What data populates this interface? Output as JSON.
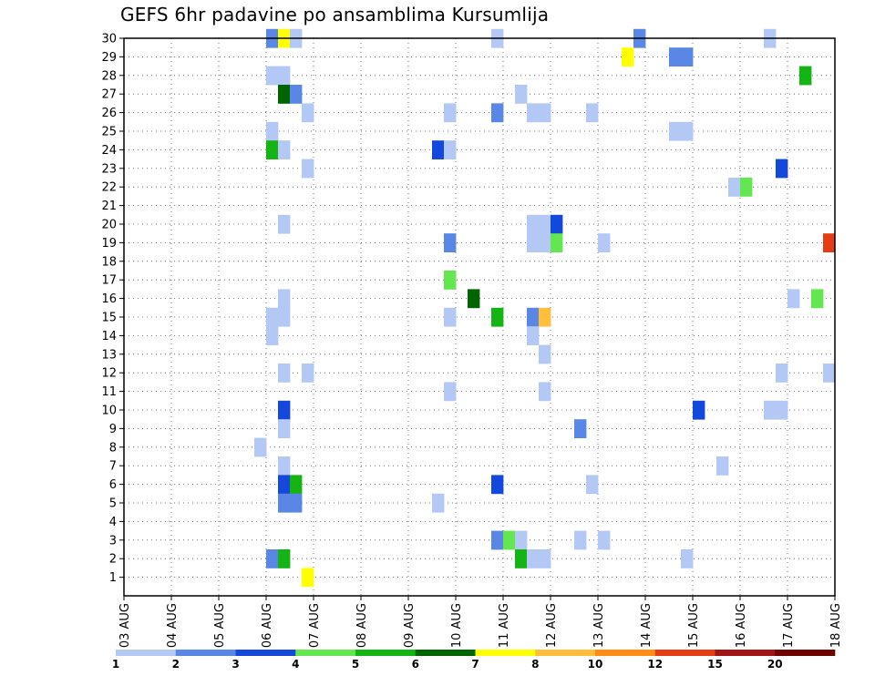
{
  "chart_data": {
    "type": "heatmap",
    "title": "GEFS 6hr padavine po ansamblima Kursumlija",
    "x_tick_labels": [
      "03 AUG",
      "04 AUG",
      "05 AUG",
      "06 AUG",
      "07 AUG",
      "08 AUG",
      "09 AUG",
      "10 AUG",
      "11 AUG",
      "12 AUG",
      "13 AUG",
      "14 AUG",
      "15 AUG",
      "16 AUG",
      "17 AUG",
      "18 AUG"
    ],
    "y_tick_labels": [
      "1",
      "2",
      "3",
      "4",
      "5",
      "6",
      "7",
      "8",
      "9",
      "10",
      "11",
      "12",
      "13",
      "14",
      "15",
      "16",
      "17",
      "18",
      "19",
      "20",
      "21",
      "22",
      "23",
      "24",
      "25",
      "26",
      "27",
      "28",
      "29",
      "30"
    ],
    "x_start": "03 AUG 00Z",
    "x_end": "18 AUG 00Z",
    "time_step_hours": 6,
    "y_range": [
      0,
      30
    ],
    "grid": "dotted",
    "color_scale": {
      "labels": [
        "1",
        "2",
        "3",
        "4",
        "5",
        "6",
        "7",
        "8",
        "10",
        "12",
        "15",
        "20"
      ],
      "colors": [
        "#b4c8f5",
        "#5a87e6",
        "#1448dc",
        "#64e650",
        "#14b414",
        "#006400",
        "#ffff00",
        "#ffbe3c",
        "#ff8c14",
        "#e63c14",
        "#a01414",
        "#6e0000"
      ]
    },
    "cells": [
      {
        "member": 30,
        "time": "06 AUG 00Z",
        "color": "#5a87e6"
      },
      {
        "member": 30,
        "time": "06 AUG 06Z",
        "color": "#ffff00"
      },
      {
        "member": 30,
        "time": "06 AUG 12Z",
        "color": "#b4c8f5"
      },
      {
        "member": 30,
        "time": "10 AUG 18Z",
        "color": "#b4c8f5"
      },
      {
        "member": 30,
        "time": "13 AUG 18Z",
        "color": "#5a87e6"
      },
      {
        "member": 30,
        "time": "16 AUG 12Z",
        "color": "#b4c8f5"
      },
      {
        "member": 29,
        "time": "13 AUG 12Z",
        "color": "#ffff00"
      },
      {
        "member": 29,
        "time": "14 AUG 12Z",
        "color": "#5a87e6"
      },
      {
        "member": 29,
        "time": "14 AUG 18Z",
        "color": "#5a87e6"
      },
      {
        "member": 28,
        "time": "06 AUG 00Z",
        "color": "#b4c8f5"
      },
      {
        "member": 28,
        "time": "06 AUG 06Z",
        "color": "#b4c8f5"
      },
      {
        "member": 28,
        "time": "17 AUG 06Z",
        "color": "#14b414"
      },
      {
        "member": 27,
        "time": "06 AUG 06Z",
        "color": "#006400"
      },
      {
        "member": 27,
        "time": "06 AUG 12Z",
        "color": "#5a87e6"
      },
      {
        "member": 27,
        "time": "11 AUG 06Z",
        "color": "#b4c8f5"
      },
      {
        "member": 26,
        "time": "06 AUG 18Z",
        "color": "#b4c8f5"
      },
      {
        "member": 26,
        "time": "09 AUG 18Z",
        "color": "#b4c8f5"
      },
      {
        "member": 26,
        "time": "10 AUG 18Z",
        "color": "#5a87e6"
      },
      {
        "member": 26,
        "time": "11 AUG 12Z",
        "color": "#b4c8f5"
      },
      {
        "member": 26,
        "time": "11 AUG 18Z",
        "color": "#b4c8f5"
      },
      {
        "member": 26,
        "time": "12 AUG 18Z",
        "color": "#b4c8f5"
      },
      {
        "member": 25,
        "time": "06 AUG 00Z",
        "color": "#b4c8f5"
      },
      {
        "member": 25,
        "time": "14 AUG 12Z",
        "color": "#b4c8f5"
      },
      {
        "member": 25,
        "time": "14 AUG 18Z",
        "color": "#b4c8f5"
      },
      {
        "member": 24,
        "time": "06 AUG 00Z",
        "color": "#14b414"
      },
      {
        "member": 24,
        "time": "06 AUG 06Z",
        "color": "#b4c8f5"
      },
      {
        "member": 24,
        "time": "09 AUG 12Z",
        "color": "#1448dc"
      },
      {
        "member": 24,
        "time": "09 AUG 18Z",
        "color": "#b4c8f5"
      },
      {
        "member": 23,
        "time": "06 AUG 18Z",
        "color": "#b4c8f5"
      },
      {
        "member": 23,
        "time": "16 AUG 18Z",
        "color": "#1448dc"
      },
      {
        "member": 22,
        "time": "15 AUG 18Z",
        "color": "#b4c8f5"
      },
      {
        "member": 22,
        "time": "16 AUG 00Z",
        "color": "#64e650"
      },
      {
        "member": 20,
        "time": "06 AUG 06Z",
        "color": "#b4c8f5"
      },
      {
        "member": 20,
        "time": "11 AUG 12Z",
        "color": "#b4c8f5"
      },
      {
        "member": 20,
        "time": "11 AUG 18Z",
        "color": "#b4c8f5"
      },
      {
        "member": 20,
        "time": "12 AUG 00Z",
        "color": "#1448dc"
      },
      {
        "member": 19,
        "time": "09 AUG 18Z",
        "color": "#5a87e6"
      },
      {
        "member": 19,
        "time": "11 AUG 12Z",
        "color": "#b4c8f5"
      },
      {
        "member": 19,
        "time": "11 AUG 18Z",
        "color": "#b4c8f5"
      },
      {
        "member": 19,
        "time": "12 AUG 00Z",
        "color": "#64e650"
      },
      {
        "member": 19,
        "time": "13 AUG 00Z",
        "color": "#b4c8f5"
      },
      {
        "member": 19,
        "time": "17 AUG 18Z",
        "color": "#e63c14"
      },
      {
        "member": 17,
        "time": "09 AUG 18Z",
        "color": "#64e650"
      },
      {
        "member": 16,
        "time": "06 AUG 06Z",
        "color": "#b4c8f5"
      },
      {
        "member": 16,
        "time": "10 AUG 06Z",
        "color": "#006400"
      },
      {
        "member": 16,
        "time": "17 AUG 00Z",
        "color": "#b4c8f5"
      },
      {
        "member": 16,
        "time": "17 AUG 12Z",
        "color": "#64e650"
      },
      {
        "member": 15,
        "time": "06 AUG 00Z",
        "color": "#b4c8f5"
      },
      {
        "member": 15,
        "time": "06 AUG 06Z",
        "color": "#b4c8f5"
      },
      {
        "member": 15,
        "time": "09 AUG 18Z",
        "color": "#b4c8f5"
      },
      {
        "member": 15,
        "time": "10 AUG 18Z",
        "color": "#14b414"
      },
      {
        "member": 15,
        "time": "11 AUG 12Z",
        "color": "#5a87e6"
      },
      {
        "member": 15,
        "time": "11 AUG 18Z",
        "color": "#ffbe3c"
      },
      {
        "member": 14,
        "time": "06 AUG 00Z",
        "color": "#b4c8f5"
      },
      {
        "member": 14,
        "time": "11 AUG 12Z",
        "color": "#b4c8f5"
      },
      {
        "member": 13,
        "time": "11 AUG 18Z",
        "color": "#b4c8f5"
      },
      {
        "member": 12,
        "time": "06 AUG 06Z",
        "color": "#b4c8f5"
      },
      {
        "member": 12,
        "time": "06 AUG 18Z",
        "color": "#b4c8f5"
      },
      {
        "member": 12,
        "time": "16 AUG 18Z",
        "color": "#b4c8f5"
      },
      {
        "member": 12,
        "time": "17 AUG 18Z",
        "color": "#b4c8f5"
      },
      {
        "member": 11,
        "time": "09 AUG 18Z",
        "color": "#b4c8f5"
      },
      {
        "member": 11,
        "time": "11 AUG 18Z",
        "color": "#b4c8f5"
      },
      {
        "member": 10,
        "time": "06 AUG 06Z",
        "color": "#1448dc"
      },
      {
        "member": 10,
        "time": "15 AUG 00Z",
        "color": "#1448dc"
      },
      {
        "member": 10,
        "time": "16 AUG 12Z",
        "color": "#b4c8f5"
      },
      {
        "member": 10,
        "time": "16 AUG 18Z",
        "color": "#b4c8f5"
      },
      {
        "member": 9,
        "time": "06 AUG 06Z",
        "color": "#b4c8f5"
      },
      {
        "member": 9,
        "time": "12 AUG 12Z",
        "color": "#5a87e6"
      },
      {
        "member": 8,
        "time": "05 AUG 18Z",
        "color": "#b4c8f5"
      },
      {
        "member": 7,
        "time": "06 AUG 06Z",
        "color": "#b4c8f5"
      },
      {
        "member": 7,
        "time": "15 AUG 12Z",
        "color": "#b4c8f5"
      },
      {
        "member": 6,
        "time": "06 AUG 06Z",
        "color": "#1448dc"
      },
      {
        "member": 6,
        "time": "06 AUG 12Z",
        "color": "#14b414"
      },
      {
        "member": 6,
        "time": "10 AUG 18Z",
        "color": "#1448dc"
      },
      {
        "member": 6,
        "time": "12 AUG 18Z",
        "color": "#b4c8f5"
      },
      {
        "member": 5,
        "time": "06 AUG 06Z",
        "color": "#5a87e6"
      },
      {
        "member": 5,
        "time": "06 AUG 12Z",
        "color": "#5a87e6"
      },
      {
        "member": 5,
        "time": "09 AUG 12Z",
        "color": "#b4c8f5"
      },
      {
        "member": 3,
        "time": "10 AUG 18Z",
        "color": "#5a87e6"
      },
      {
        "member": 3,
        "time": "11 AUG 00Z",
        "color": "#64e650"
      },
      {
        "member": 3,
        "time": "11 AUG 06Z",
        "color": "#b4c8f5"
      },
      {
        "member": 3,
        "time": "12 AUG 12Z",
        "color": "#b4c8f5"
      },
      {
        "member": 3,
        "time": "13 AUG 00Z",
        "color": "#b4c8f5"
      },
      {
        "member": 2,
        "time": "06 AUG 00Z",
        "color": "#5a87e6"
      },
      {
        "member": 2,
        "time": "06 AUG 06Z",
        "color": "#14b414"
      },
      {
        "member": 2,
        "time": "11 AUG 06Z",
        "color": "#14b414"
      },
      {
        "member": 2,
        "time": "11 AUG 12Z",
        "color": "#b4c8f5"
      },
      {
        "member": 2,
        "time": "11 AUG 18Z",
        "color": "#b4c8f5"
      },
      {
        "member": 2,
        "time": "14 AUG 18Z",
        "color": "#b4c8f5"
      },
      {
        "member": 1,
        "time": "06 AUG 18Z",
        "color": "#ffff00"
      }
    ]
  }
}
